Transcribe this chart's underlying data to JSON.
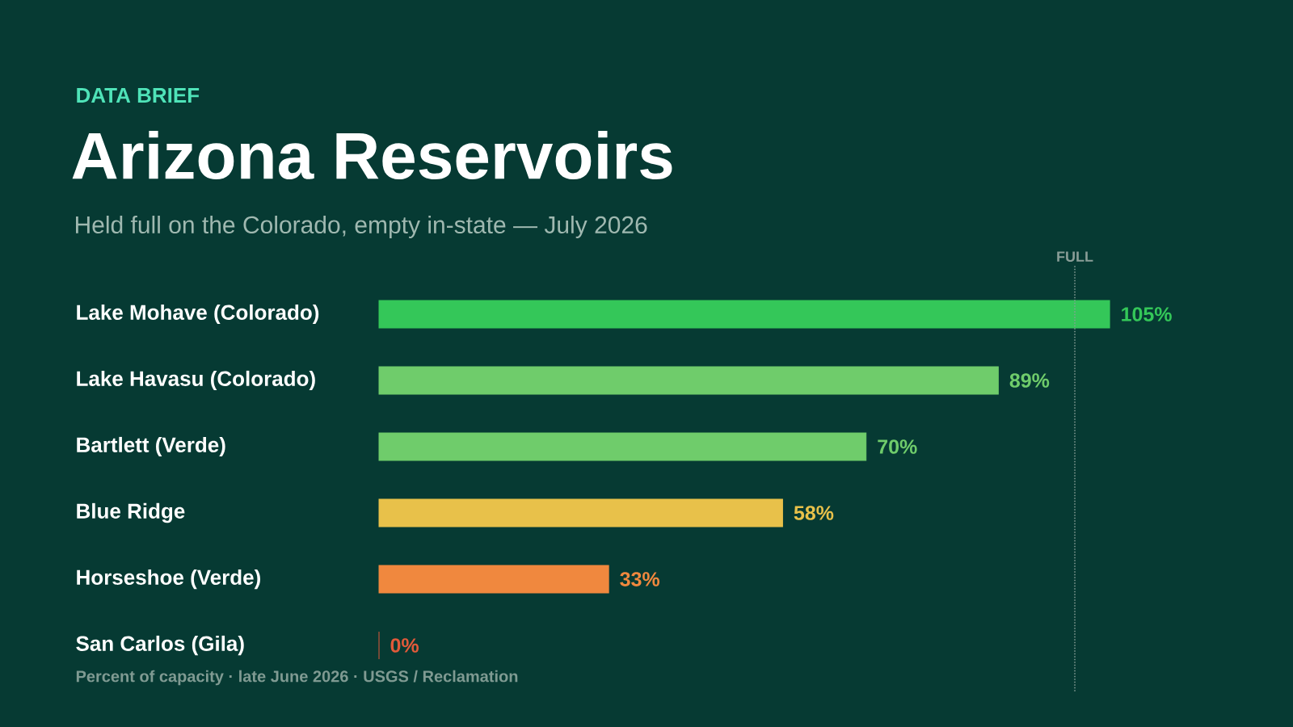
{
  "chart_data": {
    "type": "bar",
    "orientation": "horizontal",
    "title": "Arizona Reservoirs",
    "subtitle": "Held full on the Colorado, empty in-state — July 2026",
    "annotations": [
      "DATA BRIEF",
      "Percent of capacity · late June 2026 · USGS / Reclamation"
    ],
    "categories": [
      "Lake Mohave (Colorado)",
      "Lake Havasu (Colorado)",
      "Bartlett (Verde)",
      "Blue Ridge",
      "Horseshoe (Verde)",
      "San Carlos (Gila)"
    ],
    "values": [
      105,
      89,
      70,
      58,
      33,
      0
    ],
    "value_labels": [
      "105%",
      "89%",
      "70%",
      "58%",
      "33%",
      "0%"
    ],
    "colors": [
      "#34c759",
      "#6fcc6b",
      "#6fcc6b",
      "#e8c14a",
      "#f0883e",
      "#e05a3a"
    ],
    "ref_lines": [
      {
        "axis": "x",
        "value": 100,
        "label": "FULL",
        "color": "#8a9e98",
        "line_style": "dotted"
      }
    ]
  }
}
